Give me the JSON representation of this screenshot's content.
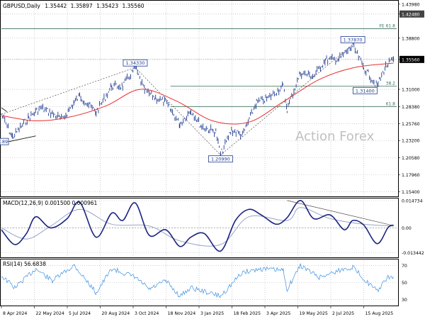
{
  "header": {
    "symbol": "GBPUSD,Daily",
    "open": "1.35442",
    "high": "1.35897",
    "low": "1.35423",
    "close": "1.35560"
  },
  "watermark": "Action Forex",
  "colors": {
    "price": "#1f3b8f",
    "ema": "#e83030",
    "macd": "#1a237e",
    "signal": "#9aa3c9",
    "rsi": "#3b8fe0",
    "level": "#3d6f5a",
    "grid_dot": "#b0b0b0"
  },
  "chart_data": [
    {
      "type": "line",
      "title": "GBPUSD,Daily 1.35442 1.35897 1.35423 1.35560",
      "x_labels": [
        "8 Apr 2024",
        "22 May 2024",
        "5 Jul 2024",
        "20 Aug 2024",
        "3 Oct 2024",
        "18 Nov 2024",
        "3 Jan 2025",
        "18 Feb 2025",
        "3 Apr 2025",
        "19 May 2025",
        "2 Jul 2025",
        "15 Aug 2025"
      ],
      "y_ticks": [
        "1.43980",
        "1.42480",
        "1.38800",
        "1.35560",
        "1.31000",
        "1.28380",
        "1.25760",
        "1.23200",
        "1.20580",
        "1.17960",
        "1.15400"
      ],
      "ylim": [
        1.148,
        1.444
      ],
      "y_tick_values": [
        1.4398,
        1.4248,
        1.388,
        1.3556,
        1.31,
        1.2838,
        1.2576,
        1.232,
        1.2058,
        1.1796,
        1.154
      ],
      "series": [
        {
          "name": "",
          "x": [
            "2024-04-08",
            "2024-04-22",
            "2024-05-13",
            "2024-05-28",
            "2024-06-12",
            "2024-06-25",
            "2024-07-10",
            "2024-07-17",
            "2024-08-07",
            "2024-08-27",
            "2024-09-10",
            "2024-09-26",
            "2024-10-08",
            "2024-10-22",
            "2024-11-04",
            "2024-11-22",
            "2024-12-06",
            "2024-12-20",
            "2025-01-07",
            "2025-01-13",
            "2025-01-27",
            "2025-02-10",
            "2025-02-28",
            "2025-03-14",
            "2025-04-03",
            "2025-04-08",
            "2025-04-25",
            "2025-05-12",
            "2025-05-27",
            "2025-06-13",
            "2025-07-01",
            "2025-07-15",
            "2025-08-01",
            "2025-08-12",
            "2025-08-22"
          ],
          "values": [
            1.272,
            1.237,
            1.267,
            1.282,
            1.273,
            1.264,
            1.29,
            1.3,
            1.275,
            1.315,
            1.315,
            1.343,
            1.308,
            1.297,
            1.29,
            1.257,
            1.278,
            1.253,
            1.245,
            1.21,
            1.248,
            1.24,
            1.29,
            1.296,
            1.315,
            1.28,
            1.335,
            1.33,
            1.355,
            1.356,
            1.376,
            1.343,
            1.315,
            1.345,
            1.356
          ]
        },
        {
          "name": "",
          "x": [
            "2024-04-08",
            "2024-05-22",
            "2024-07-05",
            "2024-08-20",
            "2024-10-03",
            "2024-11-18",
            "2025-01-03",
            "2025-02-18",
            "2025-04-03",
            "2025-05-19",
            "2025-07-02",
            "2025-08-22"
          ],
          "values": [
            1.27,
            1.262,
            1.268,
            1.285,
            1.31,
            1.292,
            1.262,
            1.26,
            1.291,
            1.325,
            1.343,
            1.35
          ]
        }
      ],
      "annotations": [
        {
          "label": "1.34330",
          "x": "2024-09-26",
          "y": 1.3433
        },
        {
          "label": "1.20990",
          "x": "2025-01-13",
          "y": 1.2099
        },
        {
          "label": "1.37870",
          "x": "2025-07-01",
          "y": 1.3787
        },
        {
          "label": "1.31400",
          "x": "2025-08-01",
          "y": 1.314
        },
        {
          "label": ".89",
          "x": "2024-04-08",
          "y": 1.231
        }
      ],
      "levels": [
        {
          "label": "FE 61.8",
          "y": 1.4025
        },
        {
          "label": "38.2",
          "y": 1.315
        },
        {
          "label": "61.8",
          "y": 1.2838
        }
      ],
      "grid": true
    },
    {
      "type": "line",
      "title": "MACD(12,26,9) 0.001500 0.000961",
      "ylim": [
        -0.0155,
        0.0155
      ],
      "y_ticks": [
        "0.014734",
        "0.00",
        "-0.013442"
      ],
      "y_tick_values": [
        0.014734,
        0,
        -0.013442
      ],
      "series": [
        {
          "name": "",
          "x": [
            "2024-04-08",
            "2024-04-25",
            "2024-05-10",
            "2024-05-22",
            "2024-06-10",
            "2024-07-01",
            "2024-07-17",
            "2024-08-07",
            "2024-08-27",
            "2024-09-10",
            "2024-09-26",
            "2024-10-14",
            "2024-11-04",
            "2024-11-22",
            "2024-12-06",
            "2024-12-23",
            "2025-01-13",
            "2025-02-01",
            "2025-02-18",
            "2025-03-06",
            "2025-03-25",
            "2025-04-08",
            "2025-04-25",
            "2025-05-12",
            "2025-06-02",
            "2025-06-20",
            "2025-07-01",
            "2025-07-15",
            "2025-08-01",
            "2025-08-15",
            "2025-08-22"
          ],
          "values": [
            -0.001,
            -0.009,
            -0.003,
            0.006,
            0.0,
            0.005,
            0.0138,
            -0.005,
            0.008,
            0.004,
            0.0135,
            -0.004,
            -0.001,
            -0.01,
            -0.005,
            -0.003,
            -0.0125,
            0.004,
            0.01,
            0.007,
            0.002,
            0.0055,
            0.0148,
            0.005,
            0.007,
            -0.001,
            0.004,
            0.0015,
            -0.0085,
            0.0002,
            0.0015
          ]
        },
        {
          "name": "",
          "x": [
            "2024-04-08",
            "2024-05-10",
            "2024-06-10",
            "2024-07-17",
            "2024-08-27",
            "2024-10-14",
            "2024-11-22",
            "2025-01-13",
            "2025-02-18",
            "2025-04-08",
            "2025-04-25",
            "2025-06-02",
            "2025-07-15",
            "2025-08-22"
          ],
          "values": [
            0.0,
            -0.006,
            0.001,
            0.01,
            0.002,
            0.001,
            -0.007,
            -0.009,
            0.006,
            0.004,
            0.011,
            0.005,
            0.002,
            0.001
          ]
        }
      ],
      "grid": true
    },
    {
      "type": "line",
      "title": "RSI(14) 56.6838",
      "ylim": [
        24,
        76
      ],
      "y_ticks": [
        "70",
        "50",
        "30"
      ],
      "y_tick_values": [
        70,
        50,
        30
      ],
      "series": [
        {
          "name": "",
          "x": [
            "2024-04-08",
            "2024-04-25",
            "2024-05-22",
            "2024-06-12",
            "2024-07-10",
            "2024-08-07",
            "2024-08-27",
            "2024-09-26",
            "2024-10-14",
            "2024-11-04",
            "2024-11-22",
            "2024-12-06",
            "2025-01-13",
            "2025-02-10",
            "2025-03-06",
            "2025-04-03",
            "2025-04-08",
            "2025-04-25",
            "2025-05-19",
            "2025-06-13",
            "2025-07-01",
            "2025-07-22",
            "2025-08-01",
            "2025-08-15",
            "2025-08-22"
          ],
          "values": [
            58,
            44,
            66,
            52,
            70,
            38,
            66,
            56,
            42,
            52,
            34,
            44,
            34,
            62,
            66,
            64,
            42,
            70,
            56,
            64,
            68,
            48,
            40,
            56,
            56.7
          ]
        }
      ],
      "grid": true
    }
  ]
}
